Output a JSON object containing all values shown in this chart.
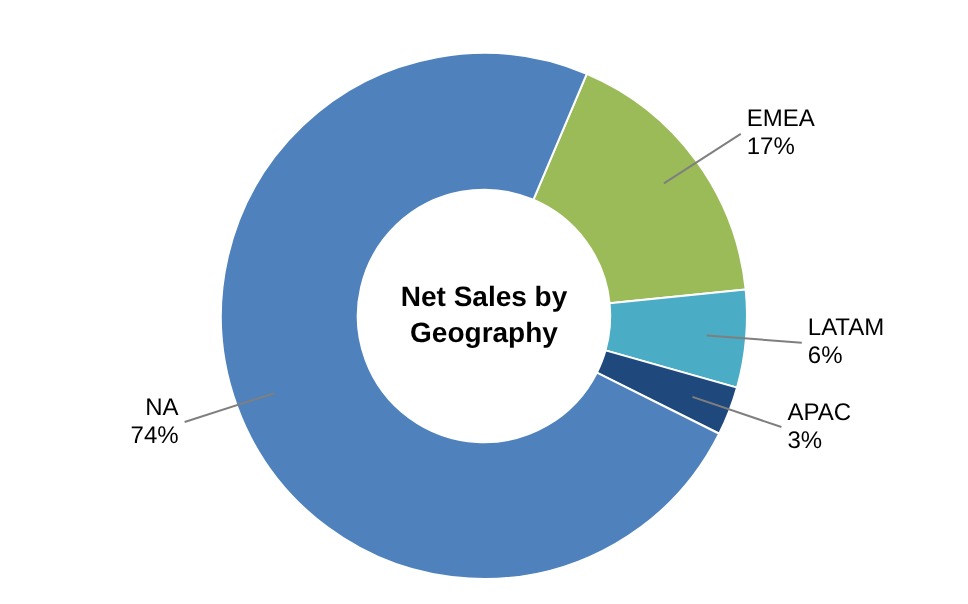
{
  "chart_data": {
    "type": "donut",
    "title": "Net Sales by Geography",
    "categories": [
      "EMEA",
      "LATAM",
      "APAC",
      "NA"
    ],
    "values": [
      17,
      6,
      3,
      74
    ],
    "value_labels": [
      "17%",
      "6%",
      "3%",
      "74%"
    ],
    "colors": [
      "#9bbb59",
      "#4bacc6",
      "#1f497d",
      "#4f81bd"
    ],
    "legend": false
  }
}
